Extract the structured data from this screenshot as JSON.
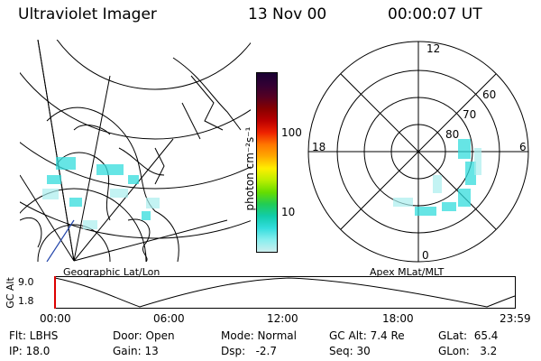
{
  "header": {
    "instrument": "Ultraviolet Imager",
    "date": "13 Nov 00",
    "time": "00:00:07 UT"
  },
  "colorbar": {
    "unit_label": "photon cm⁻²s⁻¹",
    "ticks": [
      "100",
      "10"
    ],
    "colors": [
      "#1a0033",
      "#330033",
      "#550022",
      "#880000",
      "#bb0000",
      "#ee2200",
      "#ff7700",
      "#ffaa00",
      "#ffee00",
      "#bbee00",
      "#66dd00",
      "#22cc55",
      "#11ccaa",
      "#33dddd",
      "#88eeee",
      "#cceeee"
    ]
  },
  "left_panel": {
    "caption": "Geographic Lat/Lon"
  },
  "right_panel": {
    "caption": "Apex MLat/MLT",
    "mlt_labels": {
      "top": "12",
      "left": "18",
      "right": "6",
      "bottom": "0"
    },
    "lat_labels": [
      "60",
      "70",
      "80"
    ]
  },
  "timeline": {
    "ylabel": "GC Alt",
    "ymax": "9.0",
    "ymin": "1.8",
    "ticks": [
      "00:00",
      "06:00",
      "12:00",
      "18:00",
      "23:59"
    ]
  },
  "status": {
    "flt": "Flt: LBHS",
    "ip": "IP: 18.0",
    "door": "Door: Open",
    "gain": "Gain: 13",
    "mode": "Mode: Normal",
    "dsp": "Dsp:   -2.7",
    "gcalt": "GC Alt: 7.4 Re",
    "seq": "Seq: 30",
    "glat": "GLat:  65.4",
    "glon": "GLon:   3.2"
  }
}
